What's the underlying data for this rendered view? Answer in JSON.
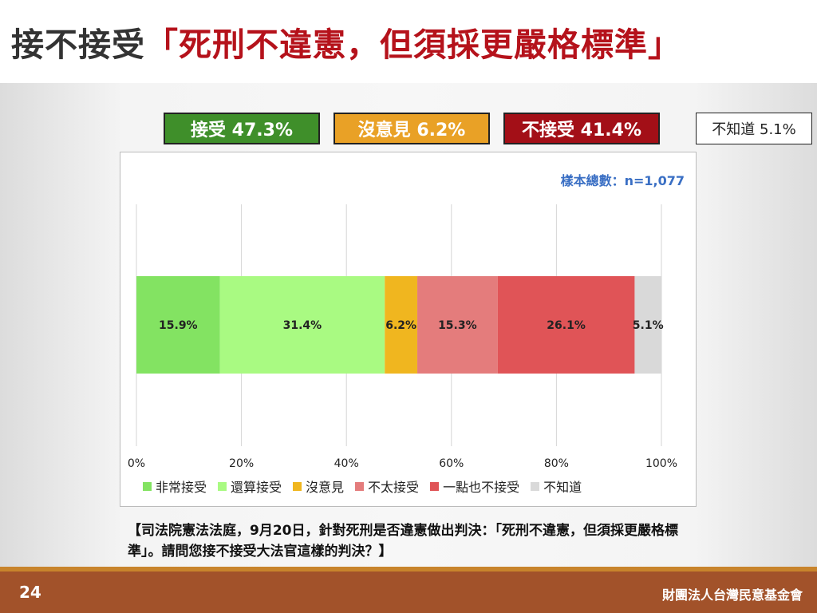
{
  "slide": {
    "title_prefix": "接不接受",
    "title_quote": "「死刑不違憲，但須採更嚴格標準」",
    "summary": {
      "accept": "接受 47.3%",
      "neutral": "沒意見 6.2%",
      "reject": "不接受 41.4%",
      "unknown": "不知道 5.1%"
    },
    "sample_size": "樣本總數：n=1,077",
    "question": "【司法院憲法法庭，9月20日，針對死刑是否違憲做出判決：「死刑不違憲，但須採更嚴格標準」。請問您接不接受大法官這樣的判決？】",
    "page_number": "24",
    "organization": "財團法人台灣民意基金會"
  },
  "colors": {
    "accept_pill": "#3f8f2a",
    "neutral_pill": "#e9a126",
    "reject_pill": "#a30f17",
    "title_red": "#b5121b"
  },
  "chart_data": {
    "type": "bar",
    "orientation": "horizontal-stacked-100",
    "xlim": [
      0,
      100
    ],
    "xticks": [
      "0%",
      "20%",
      "40%",
      "60%",
      "80%",
      "100%"
    ],
    "grid": true,
    "legend_position": "bottom",
    "series": [
      {
        "name": "非常接受",
        "value": 15.9,
        "label": "15.9%",
        "color": "#83e362"
      },
      {
        "name": "還算接受",
        "value": 31.4,
        "label": "31.4%",
        "color": "#a9fa82"
      },
      {
        "name": "沒意見",
        "value": 6.2,
        "label": "6.2%",
        "color": "#f0b61f"
      },
      {
        "name": "不太接受",
        "value": 15.3,
        "label": "15.3%",
        "color": "#e47c7c"
      },
      {
        "name": "一點也不接受",
        "value": 26.1,
        "label": "26.1%",
        "color": "#e05457"
      },
      {
        "name": "不知道",
        "value": 5.1,
        "label": "5.1%",
        "color": "#d9d9d9"
      }
    ]
  }
}
